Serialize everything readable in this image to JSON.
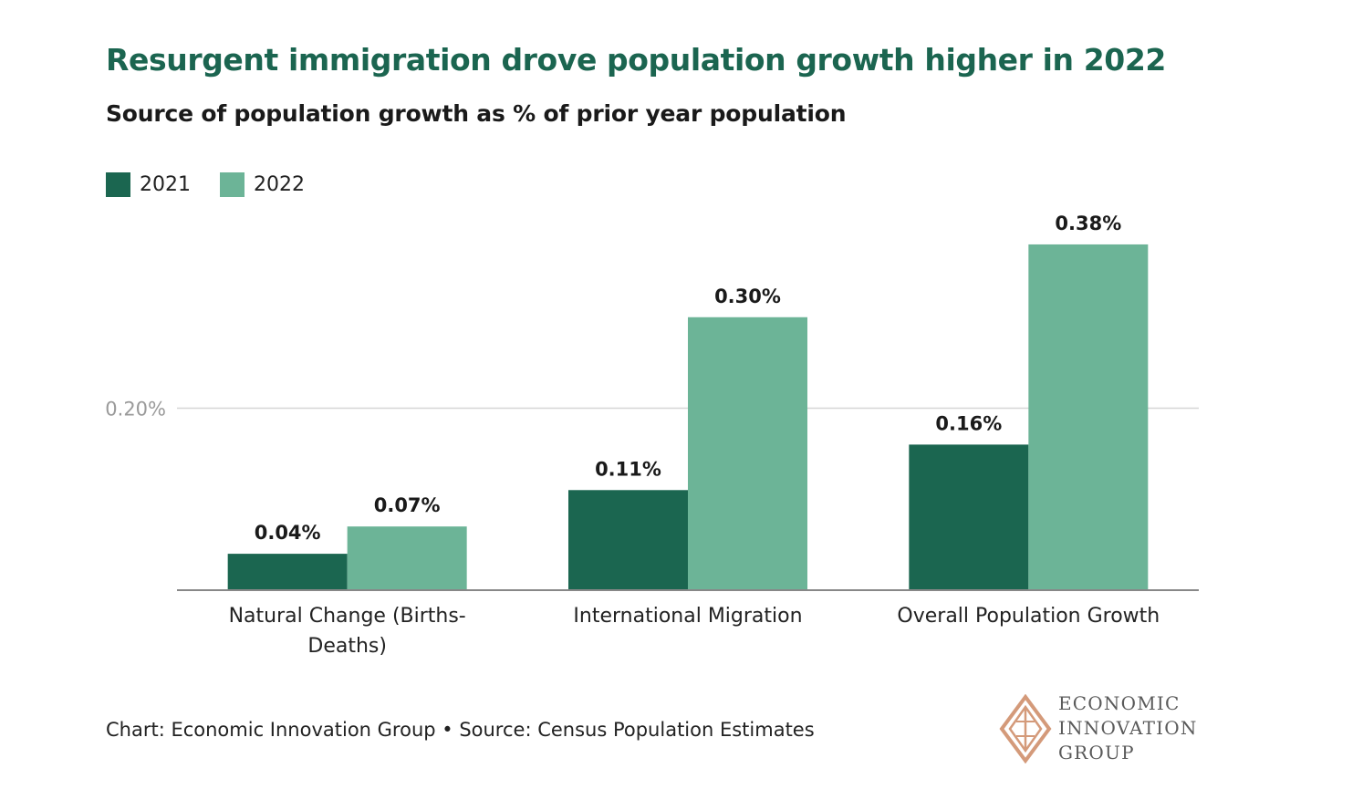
{
  "header": {
    "title": "Resurgent immigration drove population growth higher in 2022",
    "subtitle": "Source of population growth as % of prior year population"
  },
  "colors": {
    "title": "#1b6550",
    "series_2021": "#1b6650",
    "series_2022": "#6cb497",
    "axis_label": "#9a9a9a",
    "gridline": "#d6d6d6",
    "baseline": "#888888",
    "logo_accent": "#d49a7a"
  },
  "chart_data": {
    "type": "bar",
    "categories": [
      [
        "Natural Change (Births-",
        "Deaths)"
      ],
      [
        "International Migration"
      ],
      [
        "Overall Population Growth"
      ]
    ],
    "series": [
      {
        "name": "2021",
        "values": [
          0.04,
          0.11,
          0.16
        ],
        "labels": [
          "0.04%",
          "0.11%",
          "0.16%"
        ]
      },
      {
        "name": "2022",
        "values": [
          0.07,
          0.3,
          0.38
        ],
        "labels": [
          "0.07%",
          "0.30%",
          "0.38%"
        ]
      }
    ],
    "y_ticks": [
      {
        "value": 0.2,
        "label": "0.20%"
      }
    ],
    "ylim": [
      0,
      0.4
    ],
    "grid": true,
    "legend": "top-left"
  },
  "footer": {
    "credit": "Chart: Economic Innovation Group • Source: Census Population Estimates"
  },
  "logo": {
    "line1": "ECONOMIC",
    "line2": "INNOVATION",
    "line3": "GROUP"
  }
}
